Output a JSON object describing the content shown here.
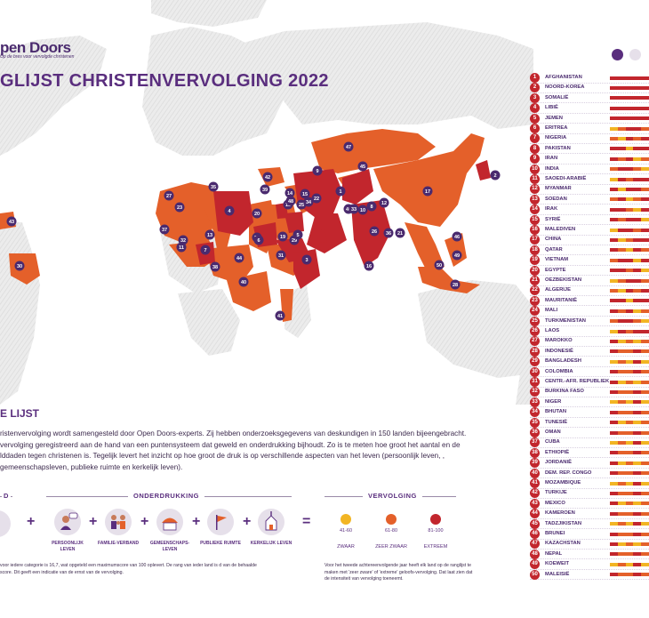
{
  "brand": {
    "logo": "pen Doors",
    "tagline": "Op de bres voor vervolgde christenen"
  },
  "title": "GLIJST CHRISTENVERVOLGING 2022",
  "colors": {
    "extreme": "#c2262d",
    "very_high": "#e4602a",
    "high": "#f2b523",
    "map_land": "#e6e6e6",
    "purple": "#5a2e7e",
    "marker": "#4a2a6e"
  },
  "map": {
    "markers": [
      "47",
      "2",
      "45",
      "1",
      "42",
      "35",
      "14",
      "15",
      "39",
      "9",
      "27",
      "18",
      "17",
      "22",
      "4",
      "20",
      "40",
      "8",
      "34",
      "23",
      "24",
      "33",
      "12",
      "10",
      "37",
      "32",
      "13",
      "6",
      "11",
      "19",
      "29",
      "26",
      "36",
      "5",
      "7",
      "31",
      "44",
      "38",
      "3",
      "46",
      "30",
      "16",
      "50",
      "28",
      "40",
      "41",
      "49",
      "43",
      "21",
      "25",
      "48"
    ]
  },
  "section": {
    "title": "E LIJST",
    "intro": "ristenvervolging wordt samengesteld door Open Doors-experts. Zij hebben onderzoeksgegevens van deskundigen in 150 landen bijeengebracht. vervolging geregistreerd aan de hand van een puntensysteem dat geweld en onderdrukking bijhoudt. Zo is te meten hoe groot het aantal en de lddaden tegen christenen is. Tegelijk levert het inzicht op hoe groot de druk is op verschillende aspecten van het leven (persoonlijk leven, , gemeenschapsleven, publieke ruimte en kerkelijk leven)."
  },
  "legend": {
    "group_left_stub": "D",
    "group_onderdrukking": "ONDERDRUKKING",
    "group_vervolging": "VERVOLGING",
    "categories": [
      {
        "label": "PERSOONLIJK LEVEN",
        "icon": "person-speech-icon"
      },
      {
        "label": "FAMILIE-VERBAND",
        "icon": "family-icon"
      },
      {
        "label": "GEMEENSCHAPS-LEVEN",
        "icon": "community-icon"
      },
      {
        "label": "PUBLIEKE RUIMTE",
        "icon": "flag-icon"
      },
      {
        "label": "KERKELIJK LEVEN",
        "icon": "church-icon"
      }
    ],
    "plus": "+",
    "equals": "=",
    "severity": [
      {
        "range": "41-60",
        "label": "ZWAAR",
        "color": "#f2b523"
      },
      {
        "range": "61-80",
        "label": "ZEER ZWAAR",
        "color": "#e4602a"
      },
      {
        "range": "81-100",
        "label": "EXTREEM",
        "color": "#c2262d"
      }
    ],
    "footnote_left": "voor iedere categorie is 16,7, wat opgeteld een maximumscore van 100 oplevert. De rang van ieder land is d van de behaalde score. Dit geeft een indicatie van de ernst van de vervolging.",
    "footnote_right": "Voor het tweede achtereenvolgende jaar heeft elk land op de ranglijst te maken met 'zeer zware' of 'extreme' geloofs-vervolging. Dat laat zien dat de intensiteit van vervolging toeneemt."
  },
  "ranking": {
    "countries": [
      "AFGHANISTAN",
      "NOORD-KOREA",
      "SOMALIË",
      "LIBIË",
      "JEMEN",
      "ERITREA",
      "NIGERIA",
      "PAKISTAN",
      "IRAN",
      "INDIA",
      "SAOEDI-ARABIË",
      "MYANMAR",
      "SOEDAN",
      "IRAK",
      "SYRIË",
      "MALEDIVEN",
      "CHINA",
      "QATAR",
      "VIETNAM",
      "EGYPTE",
      "OEZBEKISTAN",
      "ALGERIJE",
      "MAURITANIË",
      "MALI",
      "TURKMENISTAN",
      "LAOS",
      "MAROKKO",
      "INDONESIË",
      "BANGLADESH",
      "COLOMBIA",
      "CENTR.-AFR. REPUBLIEK",
      "BURKINA FASO",
      "NIGER",
      "BHUTAN",
      "TUNESIË",
      "OMAN",
      "CUBA",
      "ETHIOPIË",
      "JORDANIË",
      "DEM. REP. CONGO",
      "MOZAMBIQUE",
      "TURKIJE",
      "MEXICO",
      "KAMEROEN",
      "TADZJIKISTAN",
      "BRUNEI",
      "KAZACHSTAN",
      "NEPAL",
      "KOEWEIT",
      "MALEISIË"
    ]
  }
}
